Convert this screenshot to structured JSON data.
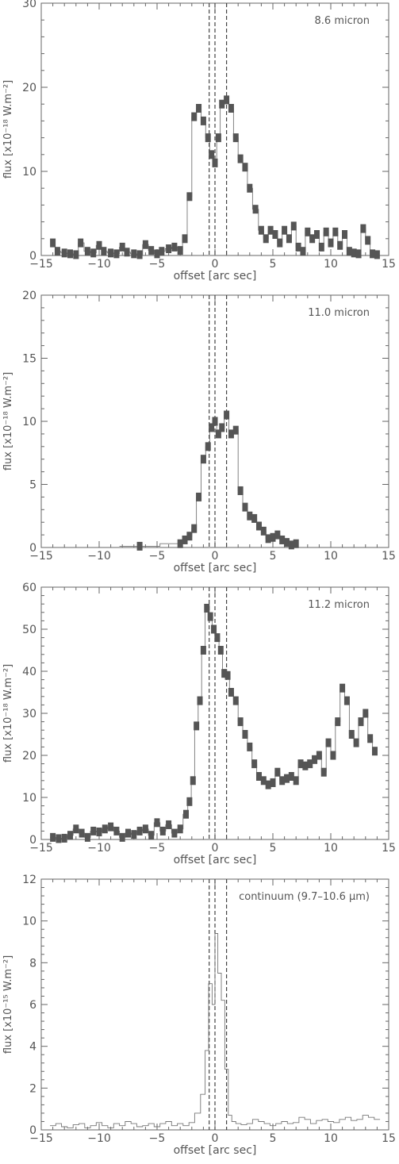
{
  "chart_data": [
    {
      "type": "line",
      "title": "",
      "annotation": "8.6 micron",
      "xlabel": "offset [arc sec]",
      "ylabel": "flux [x10⁻¹⁸ W.m⁻²]",
      "xlim": [
        -15,
        15
      ],
      "ylim": [
        0,
        30
      ],
      "xticks": [
        -15,
        -10,
        -5,
        0,
        5,
        10,
        15
      ],
      "yticks": [
        0,
        10,
        20,
        30
      ],
      "vlines": [
        -0.5,
        0,
        1
      ],
      "error_bars": true,
      "x": [
        -14,
        -13.6,
        -13,
        -12.5,
        -12,
        -11.6,
        -11,
        -10.5,
        -10,
        -9.6,
        -9,
        -8.5,
        -8,
        -7.6,
        -7,
        -6.5,
        -6,
        -5.5,
        -5,
        -4.6,
        -4,
        -3.5,
        -3,
        -2.6,
        -2.2,
        -1.8,
        -1.4,
        -1,
        -0.6,
        -0.3,
        0,
        0.3,
        0.6,
        1,
        1.4,
        1.8,
        2.2,
        2.6,
        3,
        3.5,
        4,
        4.4,
        4.8,
        5.2,
        5.6,
        6,
        6.4,
        6.8,
        7.2,
        7.6,
        8,
        8.4,
        8.8,
        9.2,
        9.6,
        10,
        10.4,
        10.8,
        11.2,
        11.6,
        12,
        12.4,
        12.8,
        13.2,
        13.6,
        14
      ],
      "y": [
        1.5,
        0.5,
        0.3,
        0.2,
        0.1,
        1.5,
        0.5,
        0.3,
        1.2,
        0.5,
        0.3,
        0.2,
        1.0,
        0.4,
        0.2,
        0.1,
        1.3,
        0.6,
        0.2,
        0.5,
        0.8,
        1.0,
        0.6,
        2.0,
        7.0,
        16.5,
        17.5,
        16.0,
        14.0,
        12.0,
        11.0,
        14.0,
        18.0,
        18.5,
        17.5,
        14.0,
        11.5,
        10.5,
        8.0,
        5.5,
        3.0,
        2.0,
        3.0,
        2.5,
        1.5,
        3.0,
        2.0,
        3.5,
        1.0,
        0.5,
        2.8,
        2.0,
        2.5,
        1.0,
        2.8,
        1.5,
        2.8,
        1.2,
        2.5,
        0.5,
        0.3,
        0.2,
        3.2,
        1.8,
        0.2,
        0.1
      ]
    },
    {
      "type": "line",
      "title": "",
      "annotation": "11.0 micron",
      "xlabel": "offset [arc sec]",
      "ylabel": "flux [x10⁻¹⁸ W.m⁻²]",
      "xlim": [
        -15,
        15
      ],
      "ylim": [
        0,
        20
      ],
      "xticks": [
        -15,
        -10,
        -5,
        0,
        5,
        10,
        15
      ],
      "yticks": [
        0,
        5,
        10,
        15,
        20
      ],
      "vlines": [
        -0.5,
        0,
        1
      ],
      "error_bars": true,
      "x": [
        -6.5,
        -3,
        -2.6,
        -2.2,
        -1.8,
        -1.4,
        -1,
        -0.6,
        -0.3,
        0,
        0.3,
        0.6,
        1,
        1.4,
        1.8,
        2.2,
        2.6,
        3,
        3.4,
        3.8,
        4.2,
        4.6,
        5,
        5.4,
        5.8,
        6.2,
        6.6,
        7
      ],
      "y": [
        0.1,
        0.3,
        0.6,
        0.9,
        1.5,
        4.0,
        7.0,
        8.0,
        9.5,
        10.0,
        9.0,
        9.5,
        10.5,
        9.0,
        9.3,
        4.5,
        3.2,
        2.5,
        2.3,
        1.7,
        1.3,
        0.7,
        0.8,
        1.0,
        0.6,
        0.4,
        0.2,
        0.3
      ]
    },
    {
      "type": "line",
      "title": "",
      "annotation": "11.2 micron",
      "xlabel": "offset [arc sec]",
      "ylabel": "flux [x10⁻¹⁸ W.m⁻²]",
      "xlim": [
        -15,
        15
      ],
      "ylim": [
        0,
        60
      ],
      "xticks": [
        -15,
        -10,
        -5,
        0,
        5,
        10,
        15
      ],
      "yticks": [
        0,
        10,
        20,
        30,
        40,
        50,
        60
      ],
      "vlines": [
        -0.5,
        0,
        1
      ],
      "error_bars": true,
      "x": [
        -14,
        -13.5,
        -13,
        -12.5,
        -12,
        -11.5,
        -11,
        -10.5,
        -10,
        -9.5,
        -9,
        -8.5,
        -8,
        -7.5,
        -7,
        -6.5,
        -6,
        -5.5,
        -5,
        -4.5,
        -4,
        -3.5,
        -3,
        -2.5,
        -2.2,
        -1.9,
        -1.6,
        -1.3,
        -1,
        -0.7,
        -0.4,
        -0.1,
        0.2,
        0.5,
        0.8,
        1.1,
        1.4,
        1.8,
        2.2,
        2.6,
        3,
        3.4,
        3.8,
        4.2,
        4.6,
        5,
        5.4,
        5.8,
        6.2,
        6.6,
        7,
        7.4,
        7.8,
        8.2,
        8.6,
        9,
        9.4,
        9.8,
        10.2,
        10.6,
        11,
        11.4,
        11.8,
        12.2,
        12.6,
        13,
        13.4,
        13.8
      ],
      "y": [
        0.5,
        0.2,
        0.3,
        1.0,
        2.5,
        1.5,
        0.5,
        2.0,
        1.8,
        2.5,
        3.0,
        2.0,
        0.5,
        1.5,
        1.2,
        2.0,
        2.5,
        1.0,
        4.0,
        2.0,
        3.5,
        1.5,
        2.5,
        6.0,
        9.0,
        14.0,
        27.0,
        33.0,
        45.0,
        55.0,
        53.0,
        50.0,
        48.0,
        45.0,
        39.5,
        39.0,
        35.0,
        33.0,
        28.0,
        25.0,
        22.0,
        18.0,
        15.0,
        14.0,
        13.0,
        13.5,
        16.0,
        14.0,
        14.5,
        15.0,
        14.0,
        18.0,
        17.5,
        18.0,
        19.0,
        20.0,
        16.0,
        23.0,
        20.0,
        28.0,
        36.0,
        33.0,
        25.0,
        23.0,
        28.0,
        30.0,
        24.0,
        21.0
      ]
    },
    {
      "type": "line",
      "title": "",
      "annotation": "continuum (9.7–10.6 μm)",
      "xlabel": "offset [arc sec]",
      "ylabel": "flux [x10⁻¹⁵ W.m⁻²]",
      "xlim": [
        -15,
        15
      ],
      "ylim": [
        0,
        12
      ],
      "xticks": [
        -15,
        -10,
        -5,
        0,
        5,
        10,
        15
      ],
      "yticks": [
        0,
        2,
        4,
        6,
        8,
        10,
        12
      ],
      "vlines": [
        -0.5,
        0,
        1
      ],
      "error_bars": false,
      "x": [
        -14,
        -13.5,
        -13,
        -12.5,
        -12,
        -11.5,
        -11,
        -10.5,
        -10,
        -9.5,
        -9,
        -8.5,
        -8,
        -7.5,
        -7,
        -6.5,
        -6,
        -5.5,
        -5,
        -4.5,
        -4,
        -3.5,
        -3,
        -2.5,
        -2,
        -1.5,
        -1,
        -0.7,
        -0.4,
        -0.1,
        0.1,
        0.4,
        0.7,
        1,
        1.3,
        1.6,
        2,
        2.5,
        3,
        3.5,
        4,
        4.5,
        5,
        5.5,
        6,
        6.5,
        7,
        7.5,
        8,
        8.5,
        9,
        9.5,
        10,
        10.5,
        11,
        11.5,
        12,
        12.5,
        13,
        13.5,
        14
      ],
      "y": [
        0.2,
        0.3,
        0.15,
        0.1,
        0.25,
        0.3,
        0.1,
        0.2,
        0.35,
        0.2,
        0.1,
        0.3,
        0.2,
        0.4,
        0.3,
        0.15,
        0.2,
        0.3,
        0.15,
        0.3,
        0.4,
        0.2,
        0.3,
        0.2,
        0.35,
        0.8,
        1.7,
        3.8,
        7.0,
        6.0,
        9.4,
        7.5,
        6.2,
        2.9,
        0.7,
        0.4,
        0.3,
        0.25,
        0.3,
        0.5,
        0.4,
        0.3,
        0.2,
        0.3,
        0.4,
        0.3,
        0.35,
        0.6,
        0.5,
        0.3,
        0.45,
        0.5,
        0.4,
        0.35,
        0.5,
        0.6,
        0.45,
        0.5,
        0.7,
        0.6,
        0.5
      ]
    }
  ]
}
